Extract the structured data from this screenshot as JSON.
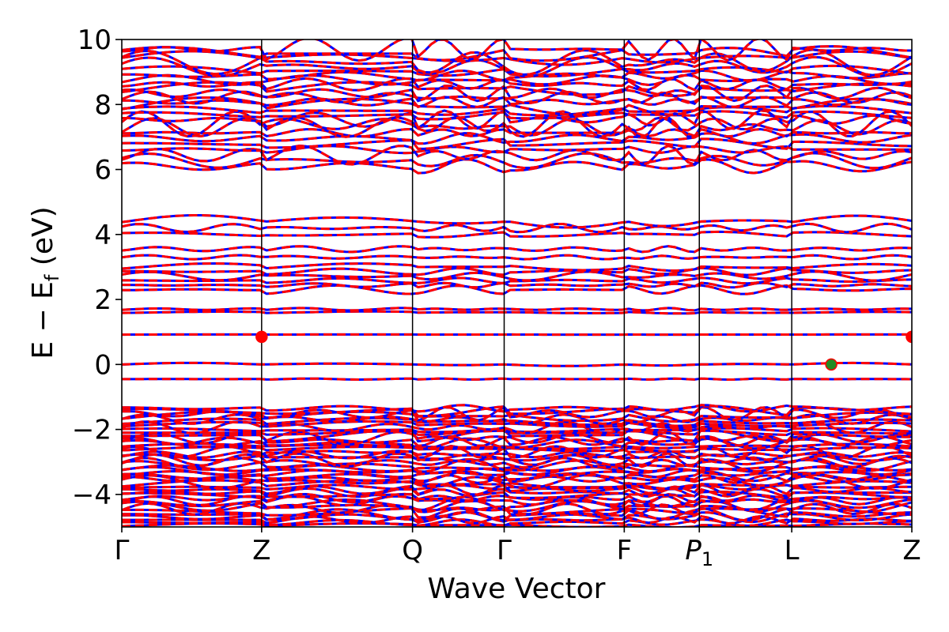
{
  "chart_data": {
    "type": "line",
    "title": "",
    "xlabel": "Wave Vector",
    "ylabel": "E − E_f (eV)",
    "ylabel_parts": {
      "main": "E − E",
      "sub": "f",
      "unit": " (eV)"
    },
    "ylim": [
      -5,
      10
    ],
    "yticks": [
      -4,
      -2,
      0,
      2,
      4,
      6,
      8,
      10
    ],
    "ytick_labels": [
      "−4",
      "−2",
      "0",
      "2",
      "4",
      "6",
      "8",
      "10"
    ],
    "kpath": [
      {
        "label": "Γ",
        "x": 0.0
      },
      {
        "label": "Z",
        "x": 0.177
      },
      {
        "label": "Q",
        "x": 0.368
      },
      {
        "label": "Γ",
        "x": 0.484
      },
      {
        "label": "F",
        "x": 0.636
      },
      {
        "label": "P",
        "sub": "1",
        "x": 0.731
      },
      {
        "label": "L",
        "x": 0.848
      },
      {
        "label": "Z",
        "x": 1.0
      }
    ],
    "xlim": [
      0,
      1
    ],
    "grid": false,
    "series": [
      {
        "color": "#0000ff",
        "style": "solid"
      },
      {
        "color": "#ff0000",
        "style": "dashed"
      }
    ],
    "markers": [
      {
        "x": 0.177,
        "y": 0.85,
        "color": "#ff0000"
      },
      {
        "x": 1.0,
        "y": 0.85,
        "color": "#ff0000"
      },
      {
        "x": 0.898,
        "y": 0.0,
        "color": "#228b22"
      }
    ]
  }
}
